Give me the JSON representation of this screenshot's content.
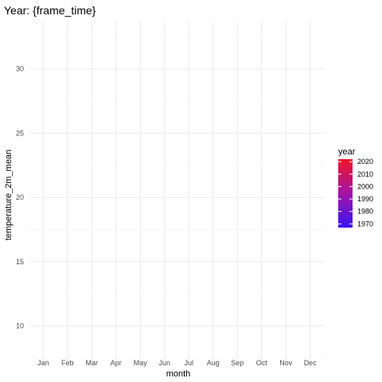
{
  "chart_data": {
    "type": "line",
    "title": "Year: {frame_time}",
    "xlabel": "month",
    "ylabel": "temperature_2m_mean",
    "categories": [
      "Jan",
      "Feb",
      "Mar",
      "Apr",
      "May",
      "Jun",
      "Jul",
      "Aug",
      "Sep",
      "Oct",
      "Nov",
      "Dec"
    ],
    "ylim": [
      7.3,
      33.7
    ],
    "yticks": [
      10,
      15,
      20,
      25,
      30
    ],
    "grid": true,
    "series": [],
    "legend": {
      "title": "year",
      "placement": "right",
      "type": "colorbar",
      "range": [
        1967,
        2022
      ],
      "ticks": [
        1970,
        1980,
        1990,
        2000,
        2010,
        2020
      ],
      "colors": {
        "low": "#3a14f5",
        "mid": "#a414a6",
        "high": "#ef1428"
      }
    }
  }
}
